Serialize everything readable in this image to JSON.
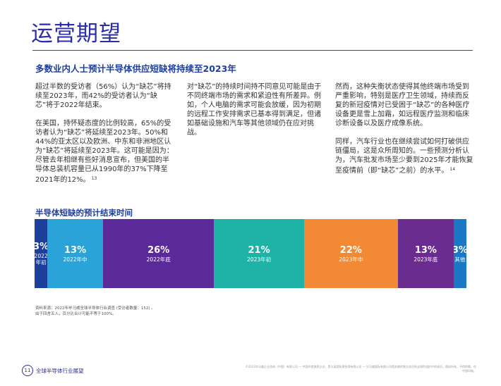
{
  "page": {
    "title": "运营期望",
    "heading": "多数业内人士预计半导体供应短缺将持续至2023年"
  },
  "columns": [
    {
      "paragraphs": [
        {
          "text": "超过半数的受访者（56%）认为“缺芯”将持续至2023年，而42%的受访者认为“缺芯”将于2022年结束。",
          "note": ""
        },
        {
          "text": "在美国，持怀疑态度的比例较高，65%的受访者认为“缺芯”将延续至2023年。50%和44%的亚太区以及欧洲、中东和非洲地区认为“缺芯”将延续至2023年。这可能是因为：尽管去年相继有些好消息宣布，但美国的半导体总装机容量已从1990年的37%下降至2021年的12%。",
          "note": "13"
        }
      ]
    },
    {
      "paragraphs": [
        {
          "text": "对“缺芯”的持续时间持不同意见可能是由于不同终端市场的需求和紧迫性有所差异。例如，个人电脑的需求可能会放缓，因为初期的远程工作安排需求已基本得到满足，但诸如基础设施和汽车等其他领域仍在应对挑战。",
          "note": ""
        }
      ]
    },
    {
      "paragraphs": [
        {
          "text": "然而，这种失衡状态使得其他终端市场受到严重影响，特别是医疗卫生领域，持续而反复的新冠疫情对已受困于“缺芯”的各种医疗设备更是雪上加霜，如远程医疗监测和临床诊断设备以及医疗成像系统。",
          "note": ""
        },
        {
          "text": "同样，汽车行业也在继续尝试如何打破供应链僵局，这是众所周知的。一些预测分析认为，汽车批发市场至少要到2025年才能恢复至疫情前（即“缺芯”之前）的水平。",
          "note": "14"
        }
      ]
    }
  ],
  "chart_data": {
    "type": "bar",
    "stacked": true,
    "orientation": "horizontal",
    "title": "半导体短缺的预计结束时间",
    "unit": "%",
    "categories": [
      "2022年初",
      "2022年中",
      "2022年底",
      "2023年初",
      "2023年中",
      "2023年底",
      "其他"
    ],
    "display_labels": [
      "2022\n年初",
      "2022年中",
      "2022年底",
      "2023年初",
      "2023年中",
      "2023年底",
      "其他"
    ],
    "values": [
      3,
      13,
      26,
      21,
      22,
      13,
      3
    ],
    "value_labels": [
      "3%",
      "13%",
      "26%",
      "21%",
      "22%",
      "13%",
      "3%"
    ],
    "colors": [
      "#1c3f9b",
      "#2aa3d8",
      "#5b2a9a",
      "#1fb3a8",
      "#f28a35",
      "#6a2c8e",
      "#1b78c4"
    ]
  },
  "source": {
    "lines": [
      "资料来源：2022年毕马威全球半导体行业调查 (受访者数量：152) 。",
      "由于四舍五入，百分比合计可能不等于100%。"
    ]
  },
  "footer": {
    "page_number": "11",
    "label": "全球半导体行业展望",
    "legal": "©2022毕马威企业咨询（中国）有限公司 — 中国外商独资企业，是与英国私营担保有限公司 — 毕马威国际有限公司相关联的独立成员所全球性组织中的成员。版权所有，不得转载。在中国印制。"
  }
}
